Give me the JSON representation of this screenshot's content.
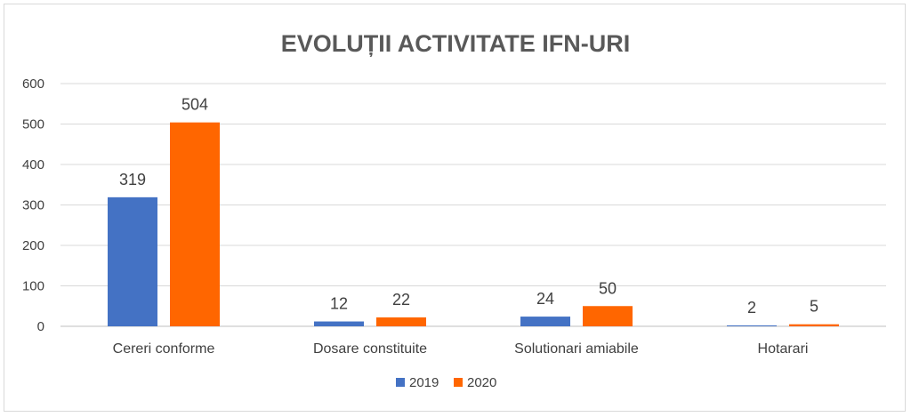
{
  "chart_data": {
    "type": "bar",
    "title": "EVOLUȚII ACTIVITATE IFN-URI",
    "xlabel": "",
    "ylabel": "",
    "ylim": [
      0,
      600
    ],
    "yticks": [
      0,
      100,
      200,
      300,
      400,
      500,
      600
    ],
    "grid": true,
    "legend_position": "bottom",
    "categories": [
      "Cereri conforme",
      "Dosare constituite",
      "Solutionari amiabile",
      "Hotarari"
    ],
    "series": [
      {
        "name": "2019",
        "color": "#4472c4",
        "values": [
          319,
          12,
          24,
          2
        ]
      },
      {
        "name": "2020",
        "color": "#ff6600",
        "values": [
          504,
          22,
          50,
          5
        ]
      }
    ]
  }
}
